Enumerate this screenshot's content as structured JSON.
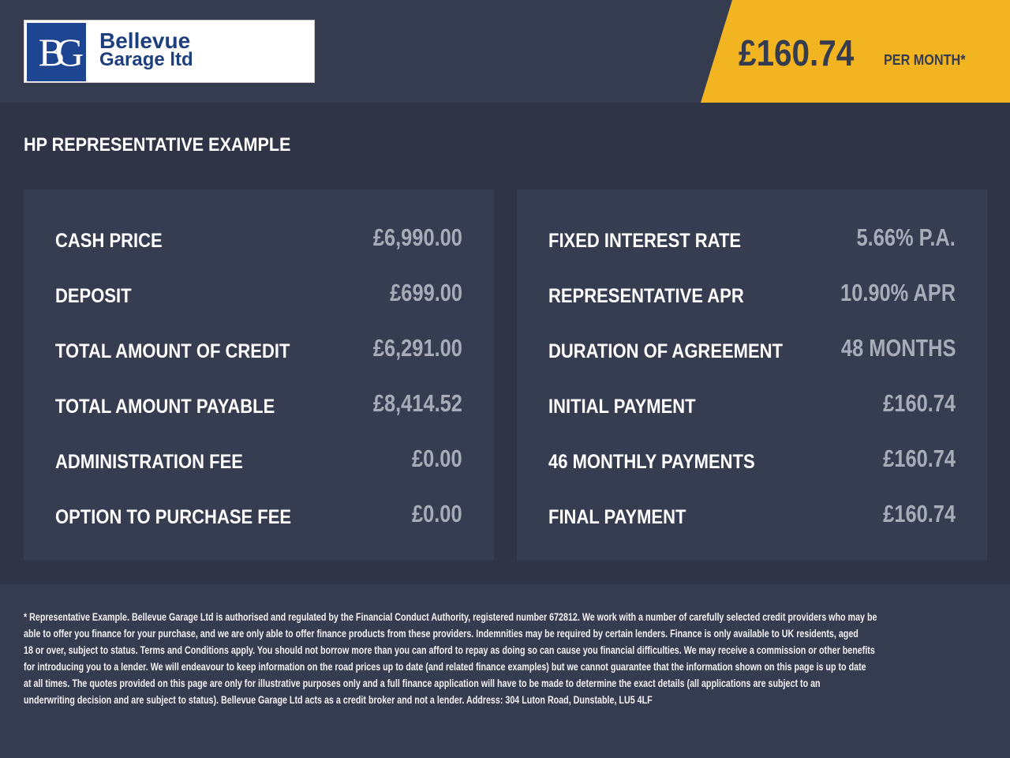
{
  "brand": {
    "monogram": "BG",
    "name_line1": "Bellevue",
    "name_line2": "Garage ltd"
  },
  "badge": {
    "price": "£160.74",
    "suffix": "PER MONTH*",
    "color": "#f2b421"
  },
  "section_title": "HP REPRESENTATIVE EXAMPLE",
  "left_rows": [
    {
      "label": "CASH PRICE",
      "value": "£6,990.00"
    },
    {
      "label": "DEPOSIT",
      "value": "£699.00"
    },
    {
      "label": "TOTAL AMOUNT OF CREDIT",
      "value": "£6,291.00"
    },
    {
      "label": "TOTAL AMOUNT PAYABLE",
      "value": "£8,414.52"
    },
    {
      "label": "ADMINISTRATION FEE",
      "value": "£0.00"
    },
    {
      "label": "OPTION TO PURCHASE FEE",
      "value": "£0.00"
    }
  ],
  "right_rows": [
    {
      "label": "FIXED INTEREST RATE",
      "value": "5.66% P.A."
    },
    {
      "label": "REPRESENTATIVE APR",
      "value": "10.90% APR"
    },
    {
      "label": "DURATION OF AGREEMENT",
      "value": "48 MONTHS"
    },
    {
      "label": "INITIAL PAYMENT",
      "value": "£160.74"
    },
    {
      "label": "46 MONTHLY PAYMENTS",
      "value": "£160.74"
    },
    {
      "label": "FINAL PAYMENT",
      "value": "£160.74"
    }
  ],
  "disclaimer_lines": [
    "* Representative Example. Bellevue Garage Ltd is authorised and regulated by the Financial Conduct Authority, registered number 672812. We work with a number of carefully selected credit providers who may be",
    "able to offer you finance for your purchase, and we are only able to offer finance products from these providers. Indemnities may be required by certain lenders. Finance is only available to UK residents, aged",
    "18 or over, subject to status. Terms and Conditions apply. You should not borrow more than you can afford to repay as doing so can cause you financial difficulties. We may receive a commission or other benefits",
    "for introducing you to a lender. We will endeavour to keep information on the road prices up to date (and related finance examples) but we cannot guarantee that the information shown on this page is up to date",
    "at all times. The quotes provided on this page are only for illustrative purposes only and a full finance application will have to be made to determine the exact details (all applications are subject to an",
    "underwriting decision and are subject to status). Bellevue Garage Ltd acts as a credit broker and not a lender. Address:  304 Luton Road, Dunstable, LU5 4LF"
  ]
}
